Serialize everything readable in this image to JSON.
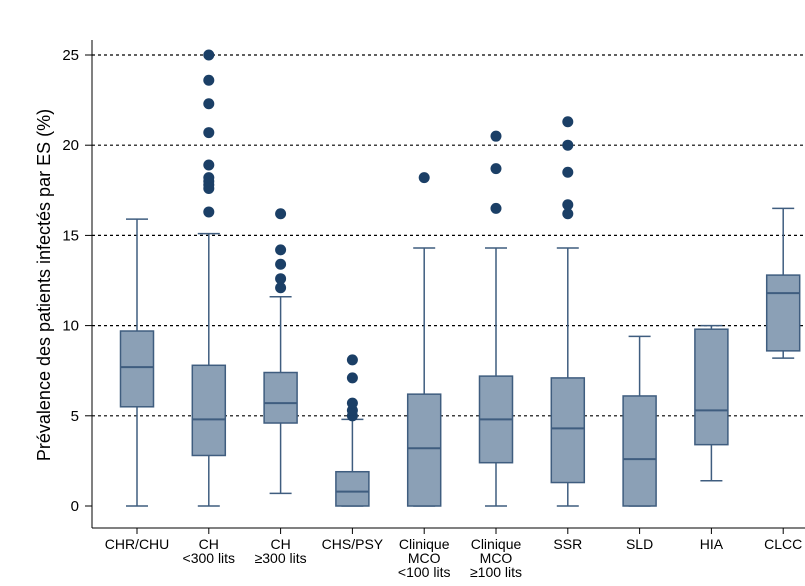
{
  "chart_data": {
    "type": "boxplot",
    "ylabel": "Prévalence des patients infectés par ES (%)",
    "ylim": [
      0,
      25
    ],
    "yticks": [
      0,
      5,
      10,
      15,
      20,
      25
    ],
    "grid": "horizontal-dashed",
    "colors": {
      "box_fill": "#8ba0b6",
      "box_stroke": "#3f5d7f",
      "outlier": "#1b3f66",
      "grid": "#000000"
    },
    "categories": [
      {
        "label": [
          "CHR/CHU"
        ],
        "whisker_low": 0,
        "q1": 5.5,
        "median": 7.7,
        "q3": 9.7,
        "whisker_high": 15.9,
        "outliers": []
      },
      {
        "label": [
          "CH",
          "<300 lits"
        ],
        "whisker_low": 0,
        "q1": 2.8,
        "median": 4.8,
        "q3": 7.8,
        "whisker_high": 15.1,
        "outliers": [
          16.3,
          17.6,
          17.8,
          18.0,
          18.2,
          18.9,
          20.7,
          22.3,
          23.6,
          25.0
        ]
      },
      {
        "label": [
          "CH",
          "≥300 lits"
        ],
        "whisker_low": 0.7,
        "q1": 4.6,
        "median": 5.7,
        "q3": 7.4,
        "whisker_high": 11.6,
        "outliers": [
          12.1,
          12.6,
          13.4,
          14.2,
          16.2
        ]
      },
      {
        "label": [
          "CHS/PSY"
        ],
        "whisker_low": 0,
        "q1": 0,
        "median": 0.8,
        "q3": 1.9,
        "whisker_high": 4.8,
        "outliers": [
          5.0,
          5.3,
          5.7,
          7.1,
          8.1
        ]
      },
      {
        "label": [
          "Clinique",
          "MCO",
          "<100 lits"
        ],
        "whisker_low": 0,
        "q1": 0,
        "median": 3.2,
        "q3": 6.2,
        "whisker_high": 14.3,
        "outliers": [
          18.2
        ]
      },
      {
        "label": [
          "Clinique",
          "MCO",
          "≥100 lits"
        ],
        "whisker_low": 0,
        "q1": 2.4,
        "median": 4.8,
        "q3": 7.2,
        "whisker_high": 14.3,
        "outliers": [
          16.5,
          18.7,
          20.5
        ]
      },
      {
        "label": [
          "SSR"
        ],
        "whisker_low": 0,
        "q1": 1.3,
        "median": 4.3,
        "q3": 7.1,
        "whisker_high": 14.3,
        "outliers": [
          16.2,
          16.7,
          18.5,
          20.0,
          21.3
        ]
      },
      {
        "label": [
          "SLD"
        ],
        "whisker_low": 0,
        "q1": 0,
        "median": 2.6,
        "q3": 6.1,
        "whisker_high": 9.4,
        "outliers": []
      },
      {
        "label": [
          "HIA"
        ],
        "whisker_low": 1.4,
        "q1": 3.4,
        "median": 5.3,
        "q3": 9.8,
        "whisker_high": 10.0,
        "outliers": []
      },
      {
        "label": [
          "CLCC"
        ],
        "whisker_low": 8.2,
        "q1": 8.6,
        "median": 11.8,
        "q3": 12.8,
        "whisker_high": 16.5,
        "outliers": []
      }
    ]
  }
}
